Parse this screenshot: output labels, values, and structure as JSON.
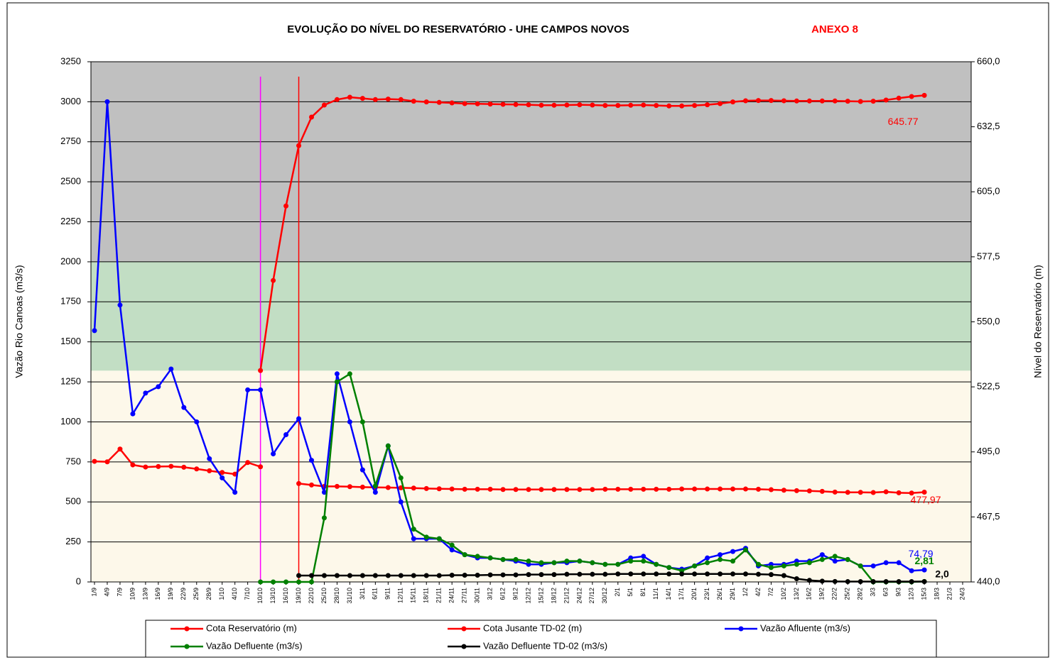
{
  "chart_data": {
    "type": "line",
    "title": "EVOLUÇÃO DO NÍVEL DO RESERVATÓRIO - UHE CAMPOS NOVOS",
    "subtitle": "ANEXO 8",
    "ylabel": "Vazão Rio Canoas (m3/s)",
    "y2label": "Nível do Reservatório (m)",
    "categories": [
      "1/9",
      "4/9",
      "7/9",
      "10/9",
      "13/9",
      "16/9",
      "19/9",
      "22/9",
      "25/9",
      "28/9",
      "1/10",
      "4/10",
      "7/10",
      "10/10",
      "13/10",
      "16/10",
      "19/10",
      "22/10",
      "25/10",
      "28/10",
      "31/10",
      "3/11",
      "6/11",
      "9/11",
      "12/11",
      "15/11",
      "18/11",
      "21/11",
      "24/11",
      "27/11",
      "30/11",
      "3/12",
      "6/12",
      "9/12",
      "12/12",
      "15/12",
      "18/12",
      "21/12",
      "24/12",
      "27/12",
      "30/12",
      "2/1",
      "5/1",
      "8/1",
      "11/1",
      "14/1",
      "17/1",
      "20/1",
      "23/1",
      "26/1",
      "29/1",
      "1/2",
      "4/2",
      "7/2",
      "10/2",
      "13/2",
      "16/2",
      "19/2",
      "22/2",
      "25/2",
      "28/2",
      "3/3",
      "6/3",
      "9/3",
      "12/3",
      "15/3",
      "18/3",
      "21/3",
      "24/3"
    ],
    "ylim": [
      0,
      3250
    ],
    "yticks": [
      0,
      250,
      500,
      750,
      1000,
      1250,
      1500,
      1750,
      2000,
      2250,
      2500,
      2750,
      3000,
      3250
    ],
    "y2lim": [
      440,
      660
    ],
    "y2ticks": [
      {
        "value": 440,
        "label": "440,0"
      },
      {
        "value": 467.5,
        "label": "467,5"
      },
      {
        "value": 495,
        "label": "495,0"
      },
      {
        "value": 522.5,
        "label": "522,5"
      },
      {
        "value": 550,
        "label": "550,0"
      },
      {
        "value": 577.5,
        "label": "577,5"
      },
      {
        "value": 605,
        "label": "605,0"
      },
      {
        "value": 632.5,
        "label": "632,5"
      },
      {
        "value": 660,
        "label": "660,0"
      }
    ],
    "grid": true,
    "legend": "bottom",
    "bands": [
      {
        "from": 0,
        "to": 1320,
        "color": "#fdf8ea"
      },
      {
        "from": 1320,
        "to": 2000,
        "color": "#c2dec4"
      },
      {
        "from": 2000,
        "to": 3250,
        "color": "#c0c0c0"
      }
    ],
    "vlines": [
      {
        "at": "10/10",
        "color": "#ff00ff"
      },
      {
        "at": "19/10",
        "color": "#ff0000"
      }
    ],
    "series": [
      {
        "name": "Cota Reservatório (m)",
        "color": "#ff0000",
        "axis": "y2",
        "end_label": "645.77",
        "values": [
          null,
          null,
          null,
          null,
          null,
          null,
          null,
          null,
          null,
          null,
          null,
          null,
          null,
          529.4,
          567.5,
          599,
          624.5,
          636.6,
          641.7,
          644,
          645,
          644.5,
          644,
          644.2,
          644,
          643.3,
          643,
          642.8,
          642.6,
          642.3,
          642.2,
          642.1,
          642,
          641.9,
          641.8,
          641.6,
          641.6,
          641.7,
          641.8,
          641.7,
          641.5,
          641.5,
          641.6,
          641.7,
          641.5,
          641.3,
          641.3,
          641.5,
          641.8,
          642.3,
          643,
          643.5,
          643.6,
          643.6,
          643.5,
          643.4,
          643.4,
          643.4,
          643.4,
          643.3,
          643.2,
          643.3,
          643.8,
          644.6,
          645.3,
          645.77,
          null,
          null,
          null
        ]
      },
      {
        "name": "Cota Jusante TD-02 (m)",
        "color": "#ff0000",
        "axis": "y2",
        "end_label": "477,97",
        "values": [
          491,
          490.8,
          496.2,
          489.5,
          488.6,
          488.8,
          488.9,
          488.5,
          487.8,
          487,
          486.3,
          485.6,
          490.5,
          488.7,
          null,
          null,
          481.6,
          481,
          480.4,
          480.4,
          480.3,
          480.1,
          480,
          479.9,
          479.8,
          479.7,
          479.5,
          479.4,
          479.3,
          479.2,
          479.2,
          479.2,
          479.1,
          479.1,
          479.1,
          479.1,
          479.1,
          479.1,
          479.1,
          479.1,
          479.2,
          479.2,
          479.2,
          479.2,
          479.2,
          479.2,
          479.3,
          479.3,
          479.3,
          479.3,
          479.3,
          479.3,
          479.2,
          479,
          478.8,
          478.6,
          478.5,
          478.3,
          478,
          477.9,
          477.9,
          477.8,
          478.1,
          477.7,
          477.6,
          477.97,
          null,
          null,
          null
        ]
      },
      {
        "name": "Vazão Afluente (m3/s)",
        "color": "#0000ff",
        "end_label": "74,79",
        "values": [
          1570,
          3000,
          1730,
          1050,
          1180,
          1220,
          1330,
          1090,
          1000,
          770,
          650,
          560,
          1200,
          1200,
          800,
          920,
          1020,
          760,
          560,
          1300,
          1000,
          700,
          560,
          850,
          500,
          270,
          270,
          270,
          200,
          170,
          150,
          150,
          140,
          130,
          110,
          110,
          120,
          120,
          130,
          120,
          110,
          110,
          150,
          160,
          110,
          90,
          80,
          100,
          150,
          170,
          190,
          210,
          100,
          110,
          110,
          130,
          130,
          170,
          130,
          140,
          100,
          100,
          120,
          120,
          70,
          74.79,
          null,
          null,
          null
        ]
      },
      {
        "name": "Vazão Defluente (m3/s)",
        "color": "#008000",
        "end_label": "2,81",
        "values": [
          null,
          null,
          null,
          null,
          null,
          null,
          null,
          null,
          null,
          null,
          null,
          null,
          null,
          0,
          0,
          0,
          0,
          0,
          400,
          1250,
          1300,
          1000,
          600,
          850,
          650,
          330,
          280,
          270,
          230,
          170,
          160,
          150,
          140,
          140,
          130,
          120,
          120,
          130,
          130,
          120,
          110,
          110,
          130,
          130,
          110,
          90,
          70,
          100,
          120,
          140,
          130,
          200,
          110,
          90,
          100,
          110,
          120,
          140,
          160,
          140,
          100,
          0,
          0,
          0,
          0,
          2.81,
          null,
          null,
          null
        ]
      },
      {
        "name": "Vazão Defluente TD-02 (m3/s)",
        "color": "#000000",
        "end_label": "2,0",
        "values": [
          null,
          null,
          null,
          null,
          null,
          null,
          null,
          null,
          null,
          null,
          null,
          null,
          null,
          null,
          null,
          null,
          40,
          40,
          40,
          40,
          40,
          40,
          40,
          40,
          40,
          40,
          40,
          40,
          42,
          42,
          42,
          44,
          44,
          44,
          46,
          46,
          46,
          48,
          48,
          48,
          48,
          50,
          50,
          50,
          50,
          50,
          50,
          50,
          50,
          50,
          50,
          50,
          48,
          46,
          40,
          20,
          10,
          5,
          3,
          2,
          2,
          2,
          2,
          2,
          2,
          2,
          null,
          null,
          null
        ]
      }
    ]
  }
}
